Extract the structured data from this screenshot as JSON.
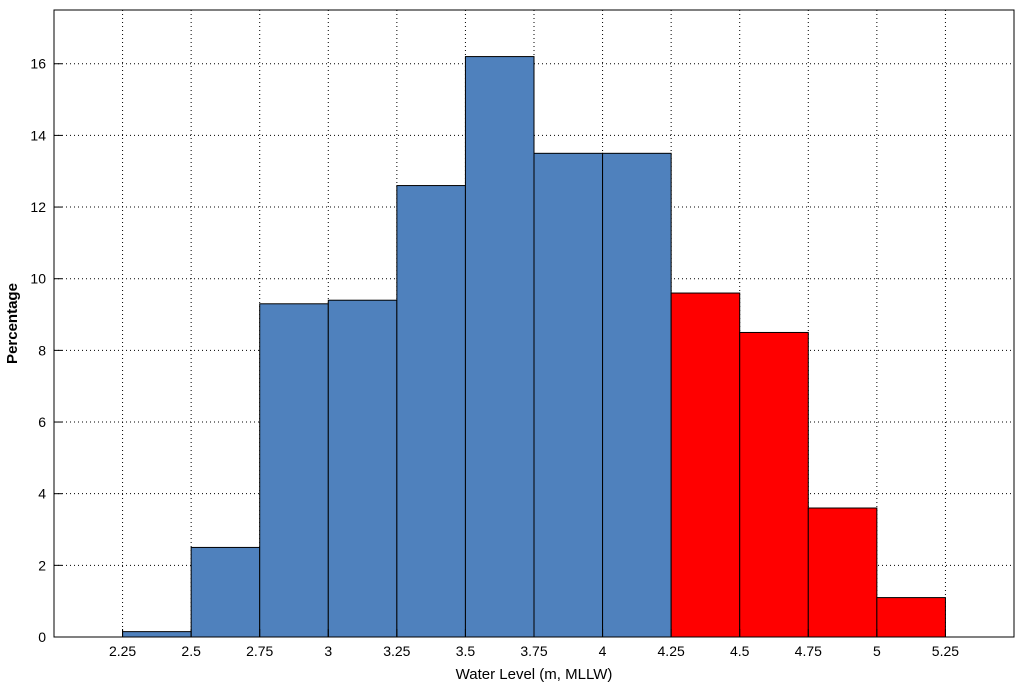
{
  "chart_data": {
    "type": "bar",
    "title": "",
    "xlabel": "Water Level (m, MLLW)",
    "ylabel": "Percentage",
    "xlim": [
      2.25,
      5.25
    ],
    "ylim": [
      0,
      17.5
    ],
    "grid": true,
    "x_ticks": [
      2.25,
      2.5,
      2.75,
      3,
      3.25,
      3.5,
      3.75,
      4,
      4.25,
      4.5,
      4.75,
      5,
      5.25
    ],
    "x_tick_labels": [
      "2.25",
      "2.5",
      "2.75",
      "3",
      "3.25",
      "3.5",
      "3.75",
      "4",
      "4.25",
      "4.5",
      "4.75",
      "5",
      "5.25"
    ],
    "y_ticks": [
      0,
      2,
      4,
      6,
      8,
      10,
      12,
      14,
      16
    ],
    "y_tick_labels": [
      "0",
      "2",
      "4",
      "6",
      "8",
      "10",
      "12",
      "14",
      "16"
    ],
    "bin_edges": [
      2.25,
      2.5,
      2.75,
      3,
      3.25,
      3.5,
      3.75,
      4,
      4.25,
      4.5,
      4.75,
      5,
      5.25
    ],
    "values": [
      0.15,
      2.5,
      9.3,
      9.4,
      12.6,
      16.2,
      13.5,
      13.5,
      9.6,
      8.5,
      3.6,
      1.1
    ],
    "bar_colors": [
      "#4f81bd",
      "#4f81bd",
      "#4f81bd",
      "#4f81bd",
      "#4f81bd",
      "#4f81bd",
      "#4f81bd",
      "#4f81bd",
      "#ff0000",
      "#ff0000",
      "#ff0000",
      "#ff0000"
    ],
    "edge_color": "#000000"
  }
}
